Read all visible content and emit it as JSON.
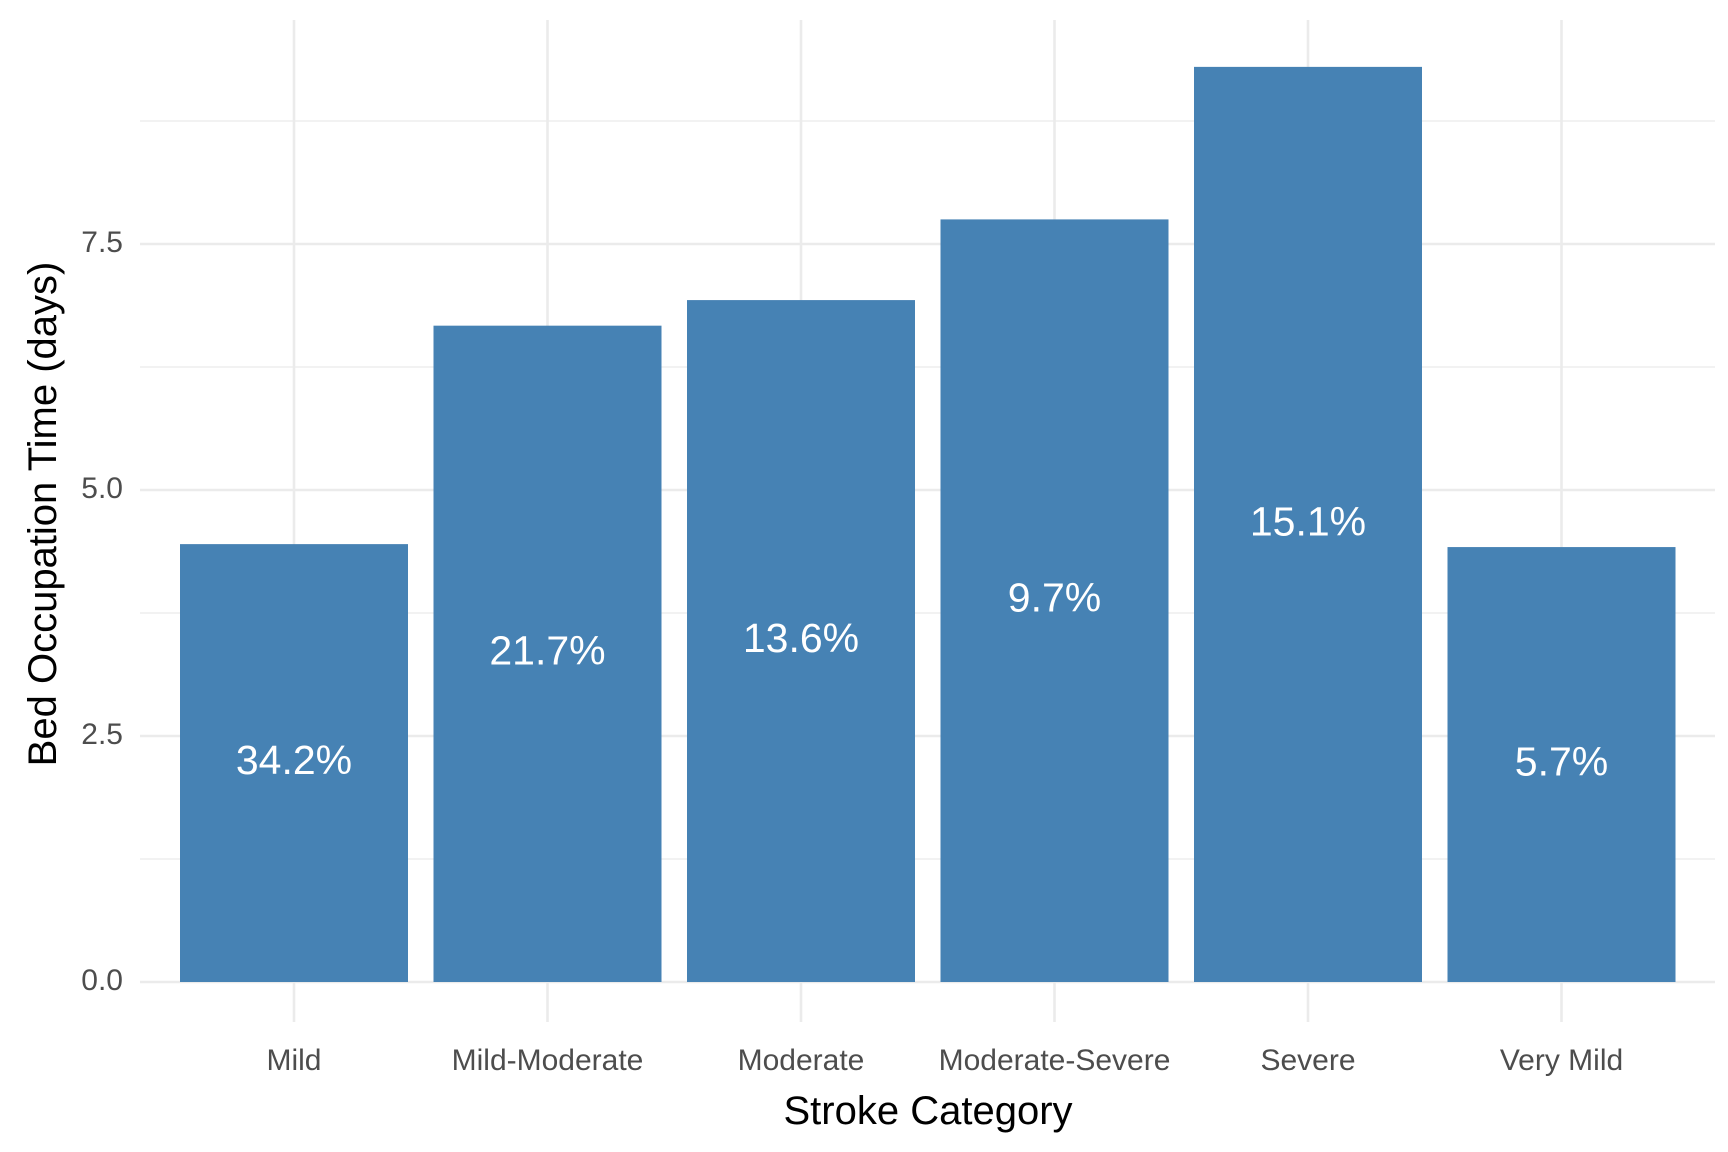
{
  "chart_data": {
    "type": "bar",
    "title": "",
    "xlabel": "Stroke Category",
    "ylabel": "Bed Occupation Time (days)",
    "categories": [
      "Mild",
      "Mild-Moderate",
      "Moderate",
      "Moderate-Severe",
      "Severe",
      "Very Mild"
    ],
    "values": [
      4.45,
      6.67,
      6.93,
      7.75,
      9.3,
      4.42
    ],
    "bar_labels": [
      "34.2%",
      "21.7%",
      "13.6%",
      "9.7%",
      "15.1%",
      "5.7%"
    ],
    "yticks": [
      0,
      2.5,
      5,
      7.5
    ],
    "ytick_labels": [
      "0.0",
      "2.5",
      "5.0",
      "7.5"
    ],
    "ylim": [
      0,
      9.7
    ],
    "grid": true,
    "legend": "none",
    "bar_color": "#4682B4"
  }
}
